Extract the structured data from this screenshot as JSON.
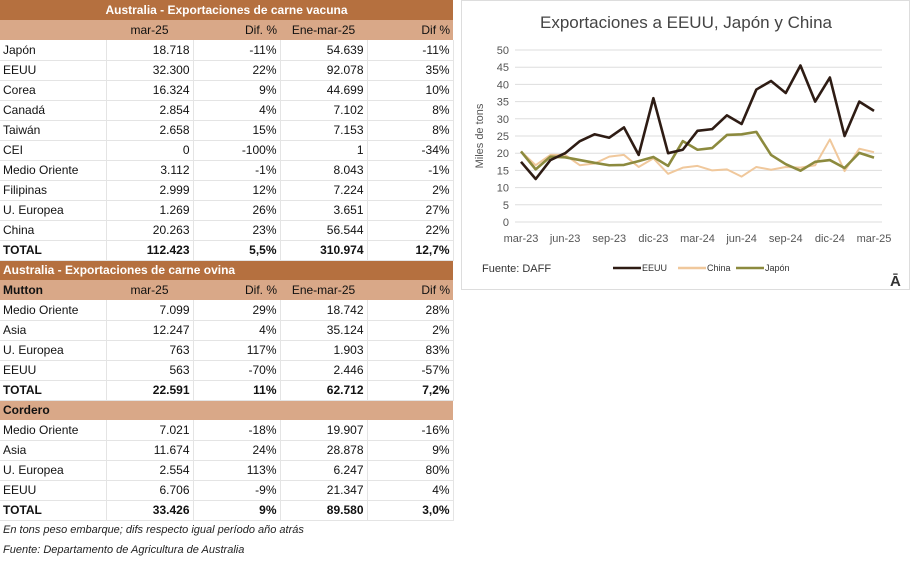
{
  "beef": {
    "title": "Australia - Exportaciones de carne vacuna",
    "headers": [
      "",
      "mar-25",
      "Dif. %",
      "Ene-mar-25",
      "Dif %"
    ],
    "rows": [
      [
        "Japón",
        "18.718",
        "-11%",
        "54.639",
        "-11%"
      ],
      [
        "EEUU",
        "32.300",
        "22%",
        "92.078",
        "35%"
      ],
      [
        "Corea",
        "16.324",
        "9%",
        "44.699",
        "10%"
      ],
      [
        "Canadá",
        "2.854",
        "4%",
        "7.102",
        "8%"
      ],
      [
        "Taiwán",
        "2.658",
        "15%",
        "7.153",
        "8%"
      ],
      [
        "CEI",
        "0",
        "-100%",
        "1",
        "-34%"
      ],
      [
        "Medio Oriente",
        "3.112",
        "-1%",
        "8.043",
        "-1%"
      ],
      [
        "Filipinas",
        "2.999",
        "12%",
        "7.224",
        "2%"
      ],
      [
        "U. Europea",
        "1.269",
        "26%",
        "3.651",
        "27%"
      ],
      [
        "China",
        "20.263",
        "23%",
        "56.544",
        "22%"
      ]
    ],
    "total": [
      "TOTAL",
      "112.423",
      "5,5%",
      "310.974",
      "12,7%"
    ]
  },
  "ovine": {
    "title": "Australia - Exportaciones de carne ovina",
    "mutton": {
      "headers": [
        "Mutton",
        "mar-25",
        "Dif. %",
        "Ene-mar-25",
        "Dif %"
      ],
      "rows": [
        [
          "Medio Oriente",
          "7.099",
          "29%",
          "18.742",
          "28%"
        ],
        [
          "Asia",
          "12.247",
          "4%",
          "35.124",
          "2%"
        ],
        [
          "U. Europea",
          "763",
          "117%",
          "1.903",
          "83%"
        ],
        [
          "EEUU",
          "563",
          "-70%",
          "2.446",
          "-57%"
        ]
      ],
      "total": [
        "TOTAL",
        "22.591",
        "11%",
        "62.712",
        "7,2%"
      ]
    },
    "lamb": {
      "label": "Cordero",
      "rows": [
        [
          "Medio Oriente",
          "7.021",
          "-18%",
          "19.907",
          "-16%"
        ],
        [
          "Asia",
          "11.674",
          "24%",
          "28.878",
          "9%"
        ],
        [
          "U. Europea",
          "2.554",
          "113%",
          "6.247",
          "80%"
        ],
        [
          "EEUU",
          "6.706",
          "-9%",
          "21.347",
          "4%"
        ]
      ],
      "total": [
        "TOTAL",
        "33.426",
        "9%",
        "89.580",
        "3,0%"
      ]
    }
  },
  "notes": [
    "En tons peso embarque; difs respecto igual período año atrás",
    "Fuente: Departamento de Agricultura de Australia"
  ],
  "colors": {
    "header": "#b5703f",
    "subheader": "#d9a888",
    "eeuu": "#2e1c14",
    "china": "#f0c89c",
    "japon": "#8c8a3e"
  },
  "chart_data": {
    "type": "line",
    "title": "Exportaciones a EEUU, Japón y China",
    "ylabel": "Miles de tons",
    "ylim": [
      0,
      50
    ],
    "yticks": [
      0,
      5,
      10,
      15,
      20,
      25,
      30,
      35,
      40,
      45,
      50
    ],
    "xtick_labels": [
      "mar-23",
      "jun-23",
      "sep-23",
      "dic-23",
      "mar-24",
      "jun-24",
      "sep-24",
      "dic-24",
      "mar-25"
    ],
    "x": [
      "mar-23",
      "abr-23",
      "may-23",
      "jun-23",
      "jul-23",
      "ago-23",
      "sep-23",
      "oct-23",
      "nov-23",
      "dic-23",
      "ene-24",
      "feb-24",
      "mar-24",
      "abr-24",
      "may-24",
      "jun-24",
      "jul-24",
      "ago-24",
      "sep-24",
      "oct-24",
      "nov-24",
      "dic-24",
      "ene-25",
      "feb-25",
      "mar-25"
    ],
    "series": [
      {
        "name": "EEUU",
        "values": [
          17.5,
          12.5,
          18,
          20,
          23.5,
          25.5,
          24.5,
          27.5,
          19.5,
          36,
          20,
          21,
          26.5,
          27,
          31,
          28.5,
          38.5,
          41,
          37.5,
          45.5,
          35,
          42,
          25,
          35,
          32.3
        ]
      },
      {
        "name": "China",
        "values": [
          20.5,
          16.5,
          19.5,
          19.5,
          16.5,
          17,
          19,
          19.5,
          16,
          18.5,
          14,
          15.8,
          16.3,
          15,
          15.3,
          13.2,
          16,
          15.2,
          16,
          15.8,
          16.5,
          24,
          14.8,
          21.3,
          20.3
        ]
      },
      {
        "name": "Japón",
        "values": [
          20.5,
          15.3,
          19,
          18.8,
          18,
          17.2,
          16.5,
          16.6,
          17.7,
          18.9,
          16.3,
          23.5,
          21,
          21.5,
          25.3,
          25.5,
          26.2,
          19.5,
          16.8,
          14.9,
          17.5,
          18,
          15.7,
          20.1,
          18.7
        ]
      }
    ],
    "source": "Fuente:  DAFF",
    "legend": "bottom",
    "grid": true
  }
}
